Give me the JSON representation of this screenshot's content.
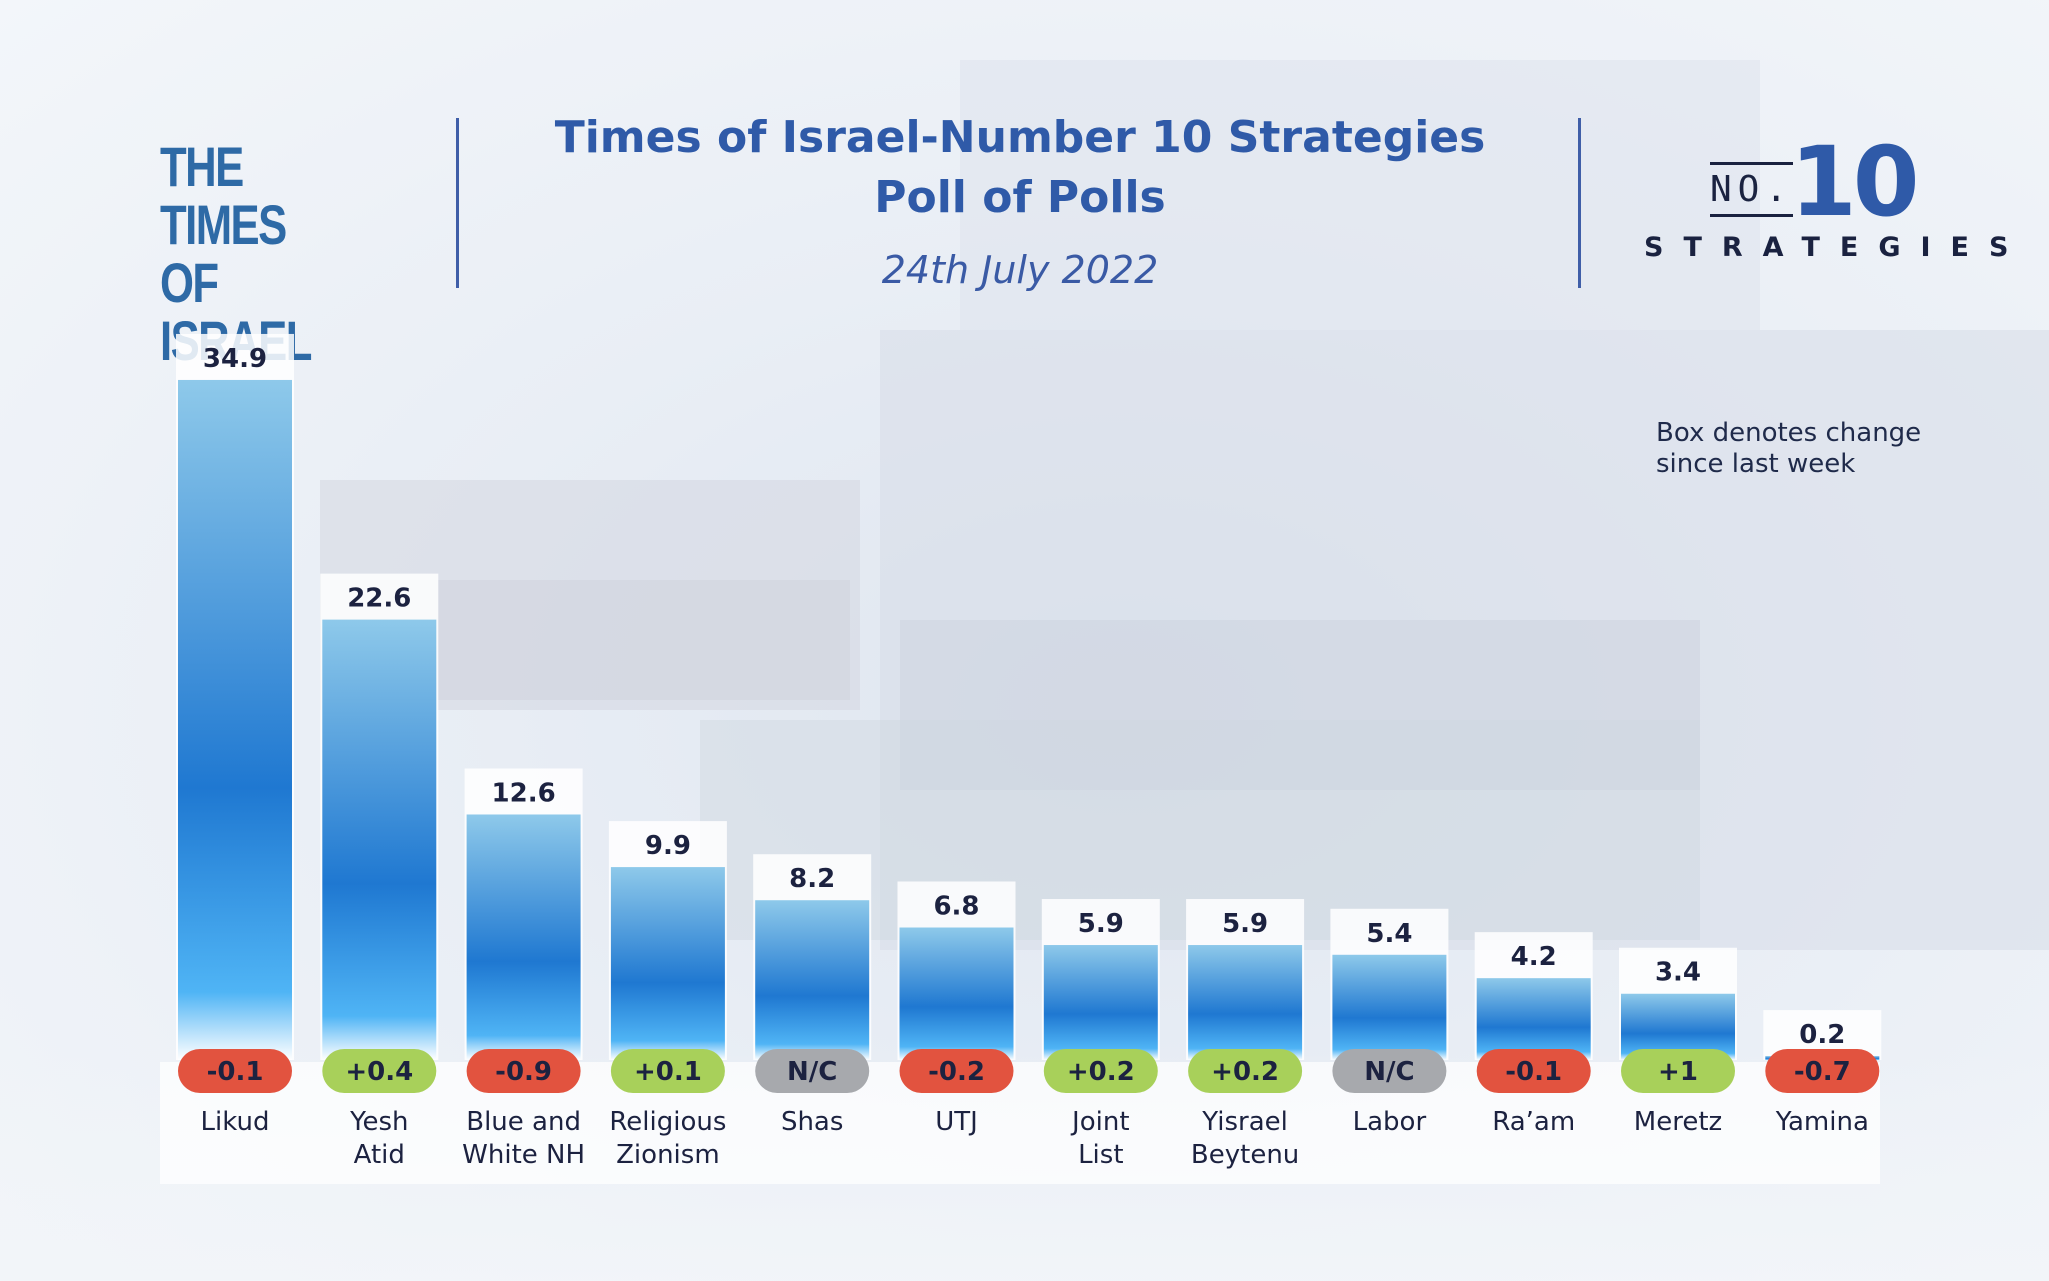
{
  "header": {
    "logo_line1": "THE TIMES",
    "logo_line2": "OF ISRAEL",
    "title_line1": "Times of Israel-Number 10 Strategies",
    "title_line2": "Poll of Polls",
    "date": "24th July 2022",
    "brand_no": "NO.",
    "brand_num": "10",
    "brand_word": "STRATEGIES"
  },
  "note": "Box denotes change since last week",
  "colors": {
    "title": "#2f5aa8",
    "bar_top": "#8ec9ea",
    "bar_mid": "#1f78d1",
    "bar_bottom": "#4fb4f5",
    "change_negative": "#e2533f",
    "change_positive": "#a8d05a",
    "change_nc": "#a7a9ad"
  },
  "chart_data": {
    "type": "bar",
    "categories": [
      [
        "Likud"
      ],
      [
        "Yesh",
        "Atid"
      ],
      [
        "Blue and",
        "White NH"
      ],
      [
        "Religious",
        "Zionism"
      ],
      [
        "Shas"
      ],
      [
        "UTJ"
      ],
      [
        "Joint",
        "List"
      ],
      [
        "Yisrael",
        "Beytenu"
      ],
      [
        "Labor"
      ],
      [
        "Ra’am"
      ],
      [
        "Meretz"
      ],
      [
        "Yamina"
      ]
    ],
    "values": [
      34.9,
      22.6,
      12.6,
      9.9,
      8.2,
      6.8,
      5.9,
      5.9,
      5.4,
      4.2,
      3.4,
      0.2
    ],
    "value_labels": [
      "34.9",
      "22.6",
      "12.6",
      "9.9",
      "8.2",
      "6.8",
      "5.9",
      "5.9",
      "5.4",
      "4.2",
      "3.4",
      "0.2"
    ],
    "changes": [
      "-0.1",
      "+0.4",
      "-0.9",
      "+0.1",
      "N/C",
      "-0.2",
      "+0.2",
      "+0.2",
      "N/C",
      "-0.1",
      "+1",
      "-0.7"
    ],
    "change_kinds": [
      "negative",
      "positive",
      "negative",
      "positive",
      "nc",
      "negative",
      "positive",
      "positive",
      "nc",
      "negative",
      "positive",
      "negative"
    ],
    "ylim": [
      0,
      35
    ],
    "grid": false,
    "legend": "none"
  }
}
